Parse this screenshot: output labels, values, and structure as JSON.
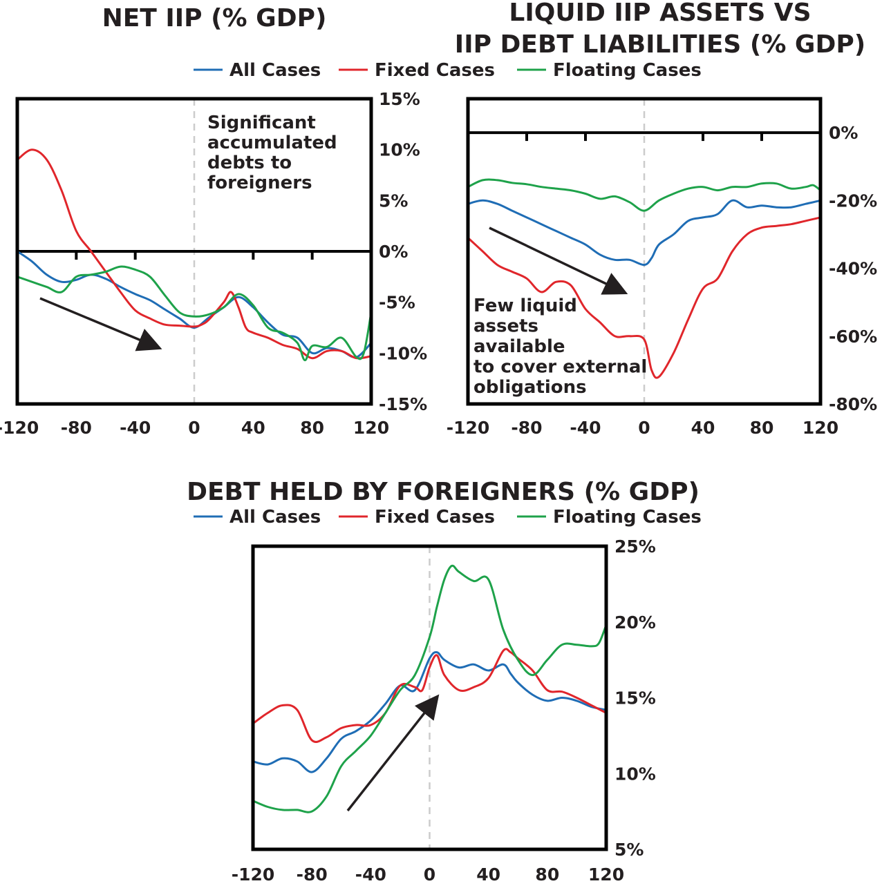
{
  "colors": {
    "all": "#1f6db5",
    "fixed": "#e0262b",
    "floating": "#1ea24a",
    "frame": "#000000",
    "text": "#231f20",
    "zero_line": "#cccccc"
  },
  "chart_data": [
    {
      "type": "line",
      "title": "NET IIP (% GDP)",
      "xlabel": "",
      "ylabel": "",
      "x_ticks": [
        "-120",
        "-80",
        "-40",
        "0",
        "40",
        "80",
        "120"
      ],
      "y_ticks": [
        "15%",
        "10%",
        "5%",
        "0%",
        "-5%",
        "-10%",
        "-15%"
      ],
      "xlim": [
        -120,
        120
      ],
      "ylim": [
        -15,
        15
      ],
      "legend": [
        "All Cases",
        "Fixed Cases",
        "Floating Cases"
      ],
      "annotation": [
        "Significant",
        "accumulated",
        "debts to",
        "foreigners"
      ],
      "series": [
        {
          "name": "All Cases",
          "x": [
            -120,
            -110,
            -100,
            -90,
            -80,
            -70,
            -60,
            -50,
            -40,
            -30,
            -20,
            -10,
            0,
            10,
            20,
            30,
            40,
            50,
            60,
            70,
            80,
            90,
            100,
            110,
            120
          ],
          "y": [
            0,
            -1,
            -2.3,
            -3,
            -2.8,
            -2.3,
            -2.7,
            -3.5,
            -4.2,
            -4.8,
            -5.7,
            -6.6,
            -7.5,
            -6.5,
            -5.5,
            -4.5,
            -5.5,
            -7,
            -8.2,
            -8.5,
            -10,
            -9.5,
            -9.8,
            -10.4,
            -9
          ]
        },
        {
          "name": "Fixed Cases",
          "x": [
            -120,
            -110,
            -100,
            -90,
            -80,
            -70,
            -60,
            -50,
            -40,
            -30,
            -20,
            -10,
            0,
            5,
            10,
            20,
            25,
            30,
            35,
            40,
            50,
            60,
            70,
            80,
            90,
            100,
            110,
            120
          ],
          "y": [
            9,
            10,
            9,
            6,
            2,
            0,
            -2,
            -4,
            -5.8,
            -6.6,
            -7.2,
            -7.3,
            -7.4,
            -7.2,
            -6.7,
            -5,
            -4,
            -5.5,
            -7.5,
            -8,
            -8.5,
            -9.2,
            -9.6,
            -10.5,
            -9.8,
            -9.8,
            -10.5,
            -10.3
          ]
        },
        {
          "name": "Floating Cases",
          "x": [
            -120,
            -110,
            -100,
            -90,
            -80,
            -70,
            -60,
            -50,
            -40,
            -30,
            -20,
            -10,
            0,
            10,
            20,
            30,
            40,
            50,
            60,
            70,
            75,
            80,
            90,
            100,
            110,
            115,
            120
          ],
          "y": [
            -2.5,
            -3,
            -3.5,
            -4,
            -2.5,
            -2.3,
            -2,
            -1.5,
            -1.8,
            -2.5,
            -4.3,
            -6,
            -6.4,
            -6.2,
            -5.5,
            -4.2,
            -5.3,
            -7.5,
            -8,
            -9,
            -10.7,
            -9.3,
            -9.4,
            -8.5,
            -10.4,
            -10,
            -6
          ]
        }
      ]
    },
    {
      "type": "line",
      "title": "LIQUID IIP ASSETS VS IIP DEBT LIABILITIES (% GDP)",
      "title_lines": [
        "LIQUID IIP ASSETS VS",
        "IIP DEBT LIABILITIES (% GDP)"
      ],
      "xlabel": "",
      "ylabel": "",
      "x_ticks": [
        "-120",
        "-80",
        "-40",
        "0",
        "40",
        "80",
        "120"
      ],
      "y_ticks": [
        "0%",
        "-20%",
        "-40%",
        "-60%",
        "-80%"
      ],
      "xlim": [
        -120,
        120
      ],
      "ylim": [
        -80,
        10
      ],
      "annotation": [
        "Few liquid",
        "assets",
        "available",
        "to cover external",
        "obligations"
      ],
      "series": [
        {
          "name": "All Cases",
          "x": [
            -120,
            -110,
            -100,
            -90,
            -80,
            -70,
            -60,
            -50,
            -40,
            -30,
            -20,
            -10,
            0,
            5,
            10,
            20,
            30,
            40,
            50,
            60,
            70,
            80,
            90,
            100,
            110,
            120
          ],
          "y": [
            -21,
            -20,
            -21,
            -23,
            -25,
            -27,
            -29,
            -31,
            -33,
            -36,
            -37.5,
            -37.5,
            -39,
            -37,
            -33,
            -30,
            -26,
            -25,
            -24,
            -20,
            -22,
            -21.5,
            -22,
            -22,
            -21,
            -20
          ]
        },
        {
          "name": "Fixed Cases",
          "x": [
            -120,
            -110,
            -100,
            -90,
            -80,
            -70,
            -60,
            -50,
            -40,
            -30,
            -20,
            -10,
            0,
            5,
            10,
            20,
            30,
            40,
            50,
            60,
            70,
            80,
            90,
            100,
            110,
            120
          ],
          "y": [
            -31,
            -35,
            -39,
            -41,
            -43,
            -47,
            -44,
            -45,
            -52,
            -56,
            -60,
            -60,
            -61,
            -70,
            -72,
            -65,
            -55,
            -46,
            -43,
            -35,
            -30,
            -28,
            -27.5,
            -27,
            -26,
            -25
          ]
        },
        {
          "name": "Floating Cases",
          "x": [
            -120,
            -110,
            -100,
            -90,
            -80,
            -70,
            -60,
            -50,
            -40,
            -30,
            -20,
            -10,
            0,
            10,
            20,
            30,
            40,
            50,
            60,
            70,
            80,
            90,
            100,
            110,
            115,
            120
          ],
          "y": [
            -16,
            -14,
            -14,
            -14.8,
            -15.2,
            -16,
            -16.5,
            -17,
            -18,
            -19.5,
            -18.8,
            -20.5,
            -23,
            -20,
            -18,
            -16.5,
            -16,
            -17,
            -16,
            -16,
            -15,
            -15,
            -16.5,
            -16,
            -15.5,
            -17
          ]
        }
      ]
    },
    {
      "type": "line",
      "title": "DEBT HELD BY FOREIGNERS (% GDP)",
      "xlabel": "",
      "ylabel": "",
      "x_ticks": [
        "-120",
        "-80",
        "-40",
        "0",
        "40",
        "80",
        "120"
      ],
      "y_ticks": [
        "25%",
        "20%",
        "15%",
        "10%",
        "5%"
      ],
      "xlim": [
        -120,
        120
      ],
      "ylim": [
        5,
        25
      ],
      "legend": [
        "All Cases",
        "Fixed Cases",
        "Floating Cases"
      ],
      "series": [
        {
          "name": "All Cases",
          "x": [
            -120,
            -110,
            -100,
            -90,
            -80,
            -70,
            -60,
            -50,
            -40,
            -30,
            -20,
            -10,
            0,
            5,
            10,
            20,
            30,
            40,
            50,
            55,
            60,
            70,
            80,
            90,
            100,
            110,
            120
          ],
          "y": [
            10.8,
            10.6,
            11,
            10.8,
            10.1,
            11,
            12.3,
            12.8,
            13.5,
            14.6,
            15.8,
            15.5,
            17.6,
            18,
            17.5,
            17,
            17.2,
            16.8,
            17.2,
            16.6,
            16,
            15.2,
            14.8,
            15,
            14.8,
            14.4,
            14.2
          ]
        },
        {
          "name": "Fixed Cases",
          "x": [
            -120,
            -110,
            -100,
            -90,
            -80,
            -70,
            -60,
            -50,
            -40,
            -30,
            -20,
            -10,
            -5,
            0,
            5,
            10,
            20,
            30,
            40,
            50,
            55,
            60,
            70,
            80,
            90,
            100,
            110,
            120
          ],
          "y": [
            13.3,
            14,
            14.5,
            14.2,
            12.2,
            12.4,
            13,
            13.2,
            13.2,
            14,
            15.8,
            15.7,
            15.5,
            17,
            17.8,
            16.5,
            15.5,
            15.7,
            16.3,
            18.1,
            18,
            17.6,
            16.8,
            15.5,
            15.4,
            15,
            14.5,
            14
          ]
        },
        {
          "name": "Floating Cases",
          "x": [
            -120,
            -110,
            -100,
            -90,
            -80,
            -70,
            -60,
            -50,
            -40,
            -30,
            -20,
            -10,
            0,
            5,
            10,
            15,
            20,
            30,
            40,
            50,
            60,
            70,
            80,
            90,
            100,
            110,
            115,
            120
          ],
          "y": [
            8.2,
            7.8,
            7.6,
            7.6,
            7.5,
            8.5,
            10.5,
            11.5,
            12.5,
            14,
            15.5,
            16.5,
            19,
            21,
            22.8,
            23.7,
            23.3,
            22.7,
            22.8,
            19.5,
            17.5,
            16.5,
            17.5,
            18.5,
            18.5,
            18.4,
            18.6,
            19.8
          ]
        }
      ]
    }
  ]
}
